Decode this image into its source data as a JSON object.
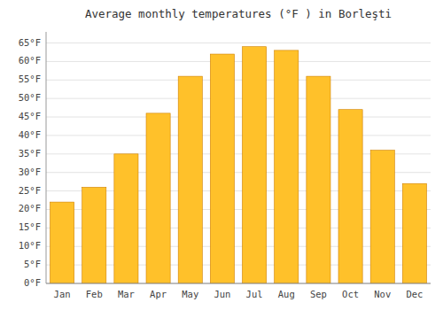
{
  "chart_data": {
    "type": "bar",
    "title": "Average monthly temperatures (°F ) in Borleşti",
    "categories": [
      "Jan",
      "Feb",
      "Mar",
      "Apr",
      "May",
      "Jun",
      "Jul",
      "Aug",
      "Sep",
      "Oct",
      "Nov",
      "Dec"
    ],
    "values": [
      22,
      26,
      35,
      46,
      56,
      62,
      64,
      63,
      56,
      47,
      36,
      27
    ],
    "color": "#FFC12A",
    "ylim": [
      0,
      68
    ],
    "yticks": [
      {
        "value": 0,
        "label": "0°F"
      },
      {
        "value": 5,
        "label": "5°F"
      },
      {
        "value": 10,
        "label": "10°F"
      },
      {
        "value": 15,
        "label": "15°F"
      },
      {
        "value": 20,
        "label": "20°F"
      },
      {
        "value": 25,
        "label": "25°F"
      },
      {
        "value": 30,
        "label": "30°F"
      },
      {
        "value": 35,
        "label": "35°F"
      },
      {
        "value": 40,
        "label": "40°F"
      },
      {
        "value": 45,
        "label": "45°F"
      },
      {
        "value": 50,
        "label": "50°F"
      },
      {
        "value": 55,
        "label": "55°F"
      },
      {
        "value": 60,
        "label": "60°F"
      },
      {
        "value": 65,
        "label": "65°F"
      }
    ],
    "grid": true
  }
}
